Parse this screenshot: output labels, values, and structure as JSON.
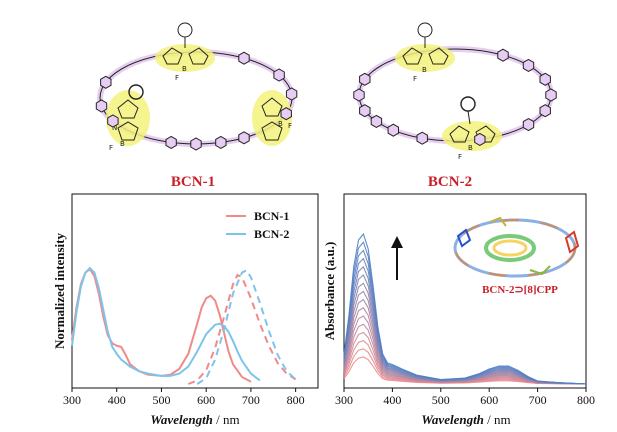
{
  "molecules": {
    "left_label": "BCN-1",
    "right_label": "BCN-2",
    "atom_labels": {
      "nitrogen": "N",
      "boron": "B",
      "fluorine": "F"
    }
  },
  "colors": {
    "bcn1": "#f08a8a",
    "bcn2": "#7cc4ec",
    "bodipy": "#f3f27a",
    "ring": "#dcb8ec",
    "title_red": "#c8202a"
  },
  "inset_label": "BCN-2⊃[8]CPP",
  "chart_data": [
    {
      "type": "line",
      "xlabel_italic": "Wavelength",
      "xlabel_unit": "/ nm",
      "ylabel": "Normalized intensity",
      "xlim": [
        300,
        850
      ],
      "xticks": [
        300,
        400,
        500,
        600,
        700,
        800
      ],
      "legend_position": "top-right",
      "series": [
        {
          "name": "BCN-1",
          "style": "solid",
          "x": [
            300,
            310,
            320,
            330,
            340,
            350,
            360,
            370,
            380,
            390,
            400,
            410,
            420,
            430,
            450,
            470,
            500,
            520,
            540,
            560,
            580,
            590,
            600,
            610,
            620,
            630,
            640,
            650,
            660,
            680,
            700
          ],
          "y": [
            0.38,
            0.66,
            0.86,
            0.96,
            0.99,
            0.93,
            0.78,
            0.58,
            0.42,
            0.35,
            0.33,
            0.32,
            0.25,
            0.17,
            0.11,
            0.08,
            0.07,
            0.08,
            0.13,
            0.26,
            0.52,
            0.66,
            0.74,
            0.76,
            0.72,
            0.6,
            0.44,
            0.28,
            0.17,
            0.06,
            0.02
          ]
        },
        {
          "name": "BCN-2",
          "style": "solid",
          "x": [
            300,
            310,
            320,
            330,
            340,
            350,
            360,
            370,
            380,
            390,
            400,
            410,
            420,
            430,
            450,
            470,
            500,
            520,
            540,
            560,
            580,
            600,
            620,
            630,
            640,
            650,
            660,
            670,
            680,
            700,
            720
          ],
          "y": [
            0.33,
            0.62,
            0.84,
            0.96,
            1.0,
            0.96,
            0.83,
            0.64,
            0.45,
            0.32,
            0.26,
            0.21,
            0.18,
            0.15,
            0.11,
            0.09,
            0.07,
            0.07,
            0.09,
            0.15,
            0.28,
            0.43,
            0.51,
            0.52,
            0.5,
            0.45,
            0.37,
            0.28,
            0.2,
            0.09,
            0.03
          ]
        },
        {
          "name": "BCN-1 emission",
          "style": "dashed",
          "color_of": "BCN-1",
          "x": [
            560,
            580,
            600,
            620,
            640,
            660,
            670,
            680,
            700,
            720,
            740,
            760,
            780,
            800
          ],
          "y": [
            0.0,
            0.03,
            0.12,
            0.31,
            0.58,
            0.86,
            0.94,
            0.92,
            0.74,
            0.52,
            0.33,
            0.18,
            0.09,
            0.04
          ]
        },
        {
          "name": "BCN-2 emission",
          "style": "dashed",
          "color_of": "BCN-2",
          "x": [
            580,
            600,
            620,
            640,
            660,
            680,
            690,
            700,
            720,
            740,
            760,
            780,
            800
          ],
          "y": [
            0.0,
            0.05,
            0.21,
            0.47,
            0.78,
            0.96,
            0.98,
            0.92,
            0.7,
            0.46,
            0.25,
            0.11,
            0.04
          ]
        }
      ]
    },
    {
      "type": "line",
      "xlabel_italic": "Wavelength",
      "xlabel_unit": "/ nm",
      "ylabel": "Absorbance (a.u.)",
      "xlim": [
        300,
        800
      ],
      "xticks": [
        300,
        400,
        500,
        600,
        700,
        800
      ],
      "titration_curves": 16,
      "start_color": "#f08a8a",
      "end_color": "#4a7fc8",
      "base_shape": {
        "x": [
          300,
          310,
          320,
          330,
          340,
          350,
          360,
          370,
          380,
          390,
          400,
          420,
          450,
          500,
          550,
          580,
          600,
          620,
          640,
          660,
          680,
          700,
          740,
          800
        ],
        "y": [
          0.2,
          0.45,
          0.78,
          0.96,
          1.0,
          0.9,
          0.66,
          0.38,
          0.2,
          0.14,
          0.13,
          0.1,
          0.06,
          0.03,
          0.04,
          0.07,
          0.1,
          0.12,
          0.12,
          0.09,
          0.05,
          0.02,
          0.01,
          0.0
        ]
      },
      "peak_min": 0.18,
      "peak_max": 1.0
    }
  ]
}
